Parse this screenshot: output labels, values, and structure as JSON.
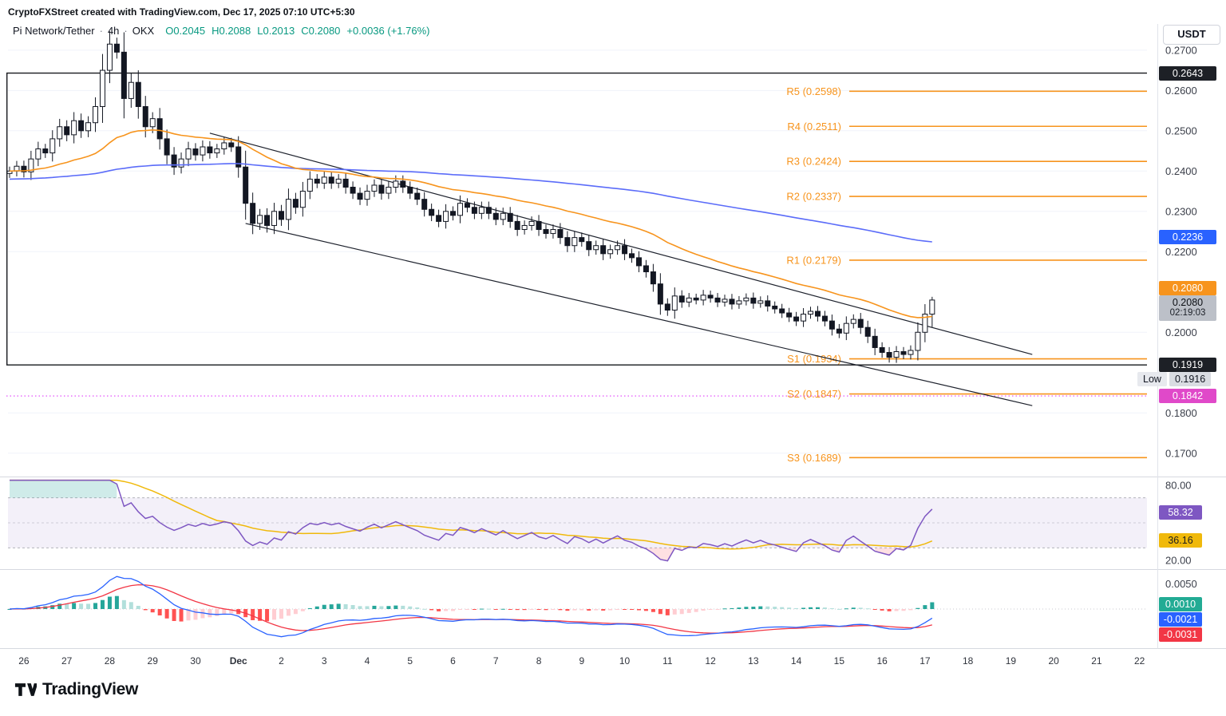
{
  "attribution": "CryptoFXStreet created with TradingView.com, Dec 17, 2025 07:10 UTC+5:30",
  "legend": {
    "symbol": "Pi Network/Tether",
    "dot": "·",
    "interval": "4h",
    "exchange": "OKX",
    "o": "O0.2045",
    "h": "H0.2088",
    "l": "L0.2013",
    "c": "C0.2080",
    "change": "+0.0036 (+1.76%)"
  },
  "currency_button": "USDT",
  "logo": "TradingView",
  "colors": {
    "up_candle": "#ffffff",
    "down_candle": "#131722",
    "candle_border": "#131722",
    "ma_fast": "#f7941d",
    "ma_slow": "#5b6cf9",
    "level_orange": "#f7941d",
    "black_line": "#16181d",
    "trendline": "#1e222d",
    "magenta": "#e040fb",
    "rsi_line": "#7e57c2",
    "rsi_ma": "#f0b90b",
    "rsi_band_fill": "rgba(126,87,194,0.09)",
    "rsi_ob_fill": "rgba(38,166,154,0.22)",
    "rsi_os_fill": "rgba(247,82,95,0.18)",
    "macd_line": "#2962ff",
    "macd_signal": "#f23645",
    "hist_pos": "#26a69a",
    "hist_pos_weak": "#b2dfdb",
    "hist_neg": "#ff5252",
    "hist_neg_weak": "#ffcdd2",
    "legend_up": "#089981",
    "badge_black": "#1d2026",
    "badge_gray": "#bcc0c8",
    "badge_purple": "#7e57c2",
    "badge_yellow": "#f0b90b",
    "badge_green": "#22ab94",
    "badge_blue": "#2962ff",
    "badge_red": "#f23645",
    "badge_orange": "#f7941d",
    "badge_magenta": "#e049c9"
  },
  "axis": {
    "price_ticks": [
      {
        "label": "0.2700",
        "value": 0.27
      },
      {
        "label": "0.2600",
        "value": 0.26
      },
      {
        "label": "0.2500",
        "value": 0.25
      },
      {
        "label": "0.2400",
        "value": 0.24
      },
      {
        "label": "0.2300",
        "value": 0.23
      },
      {
        "label": "0.2200",
        "value": 0.22
      },
      {
        "label": "0.2000",
        "value": 0.2
      },
      {
        "label": "0.1800",
        "value": 0.18
      },
      {
        "label": "0.1700",
        "value": 0.17
      }
    ],
    "rsi_ticks": [
      {
        "label": "80.00",
        "value": 80
      },
      {
        "label": "20.00",
        "value": 20
      }
    ],
    "macd_ticks": [
      {
        "label": "0.0050",
        "value": 0.005
      }
    ],
    "time_ticks": [
      "26",
      "27",
      "28",
      "29",
      "30",
      "Dec",
      "2",
      "3",
      "4",
      "5",
      "6",
      "7",
      "8",
      "9",
      "10",
      "11",
      "12",
      "13",
      "14",
      "15",
      "16",
      "17",
      "18",
      "19",
      "20",
      "21",
      "22"
    ]
  },
  "badges": {
    "upper_line": {
      "text": "0.2643",
      "value": 0.2643
    },
    "ma_slow": {
      "text": "0.2236",
      "value": 0.2236
    },
    "ma_fast": {
      "text": "0.2080",
      "value": 0.208
    },
    "last_price": {
      "text": "0.2080",
      "countdown": "02:19:03",
      "value": 0.208
    },
    "lower_line": {
      "text": "0.1919",
      "value": 0.1919
    },
    "low_tag": {
      "label": "Low",
      "text": "0.1916",
      "value": 0.1916
    },
    "magenta_level": {
      "text": "0.1842",
      "value": 0.1842
    },
    "rsi": {
      "text": "58.32",
      "value": 58.32
    },
    "rsi_ma": {
      "text": "36.16",
      "value": 36.16
    },
    "macd_hist": {
      "text": "0.0010",
      "value": 0.001
    },
    "macd_line": {
      "text": "-0.0021",
      "value": -0.0021
    },
    "macd_signal": {
      "text": "-0.0031",
      "value": -0.0031
    }
  },
  "chart_data": {
    "type": "candlestick",
    "title": "Pi Network/Tether 4h OKX",
    "interval": "4h",
    "candles_per_day": 6,
    "x_days": [
      "26",
      "27",
      "28",
      "29",
      "30",
      "Dec",
      "2",
      "3",
      "4",
      "5",
      "6",
      "7",
      "8",
      "9",
      "10",
      "11",
      "12",
      "13",
      "14",
      "15",
      "16",
      "17",
      "18",
      "19",
      "20",
      "21",
      "22"
    ],
    "price_range": [
      0.165,
      0.2765
    ],
    "closes": [
      0.24,
      0.2412,
      0.2398,
      0.243,
      0.2455,
      0.2445,
      0.248,
      0.251,
      0.249,
      0.2525,
      0.25,
      0.252,
      0.256,
      0.265,
      0.2715,
      0.2695,
      0.258,
      0.262,
      0.256,
      0.251,
      0.253,
      0.248,
      0.244,
      0.241,
      0.243,
      0.2455,
      0.244,
      0.246,
      0.2445,
      0.2455,
      0.247,
      0.246,
      0.241,
      0.232,
      0.227,
      0.229,
      0.2265,
      0.23,
      0.228,
      0.233,
      0.231,
      0.235,
      0.238,
      0.237,
      0.2385,
      0.237,
      0.238,
      0.236,
      0.2345,
      0.233,
      0.235,
      0.2365,
      0.2345,
      0.236,
      0.2375,
      0.236,
      0.2345,
      0.233,
      0.2305,
      0.229,
      0.2275,
      0.23,
      0.229,
      0.232,
      0.231,
      0.2295,
      0.231,
      0.2295,
      0.228,
      0.2295,
      0.2275,
      0.2255,
      0.2265,
      0.2275,
      0.2255,
      0.2245,
      0.2255,
      0.2235,
      0.2215,
      0.2235,
      0.2225,
      0.2205,
      0.2215,
      0.2195,
      0.2205,
      0.2215,
      0.2195,
      0.2185,
      0.2165,
      0.215,
      0.212,
      0.207,
      0.2055,
      0.209,
      0.2075,
      0.2085,
      0.208,
      0.2092,
      0.2085,
      0.2075,
      0.2082,
      0.207,
      0.2078,
      0.2085,
      0.2072,
      0.2078,
      0.2065,
      0.2058,
      0.2048,
      0.2038,
      0.2028,
      0.2045,
      0.2052,
      0.204,
      0.2028,
      0.2008,
      0.1998,
      0.2022,
      0.2032,
      0.2012,
      0.199,
      0.1962,
      0.195,
      0.1938,
      0.1952,
      0.1945,
      0.1955,
      0.2,
      0.2045,
      0.208
    ],
    "last": {
      "open": 0.2045,
      "high": 0.2088,
      "low": 0.2013,
      "close": 0.208
    },
    "overlays": {
      "ma_fast_period": 34,
      "ma_slow_period": 160
    },
    "levels": [
      {
        "label": "R5 (0.2598)",
        "value": 0.2598,
        "type": "resistance"
      },
      {
        "label": "R4 (0.2511)",
        "value": 0.2511,
        "type": "resistance"
      },
      {
        "label": "R3 (0.2424)",
        "value": 0.2424,
        "type": "resistance"
      },
      {
        "label": "R2 (0.2337)",
        "value": 0.2337,
        "type": "resistance"
      },
      {
        "label": "R1 (0.2179)",
        "value": 0.2179,
        "type": "resistance"
      },
      {
        "label": "S1 (0.1934)",
        "value": 0.1934,
        "type": "support"
      },
      {
        "label": "S2 (0.1847)",
        "value": 0.1847,
        "type": "support"
      },
      {
        "label": "S3 (0.1689)",
        "value": 0.1689,
        "type": "support"
      }
    ],
    "h_lines": [
      {
        "value": 0.2643
      },
      {
        "value": 0.1919
      }
    ],
    "dotted_line": {
      "value": 0.1842
    },
    "channel": [
      {
        "i1": 28,
        "p1": 0.2494,
        "i2": 143,
        "p2": 0.1945
      },
      {
        "i1": 33,
        "p1": 0.227,
        "i2": 143,
        "p2": 0.1818
      }
    ],
    "indicators": {
      "rsi": {
        "period": 14,
        "ma_period": 14,
        "band": [
          30,
          70
        ],
        "range": [
          20,
          80
        ],
        "last": 58.32,
        "ma_last": 36.16
      },
      "macd": {
        "fast": 12,
        "slow": 26,
        "signal": 9,
        "hist_last": 0.001,
        "macd_last": -0.0021,
        "signal_last": -0.0031
      }
    }
  }
}
